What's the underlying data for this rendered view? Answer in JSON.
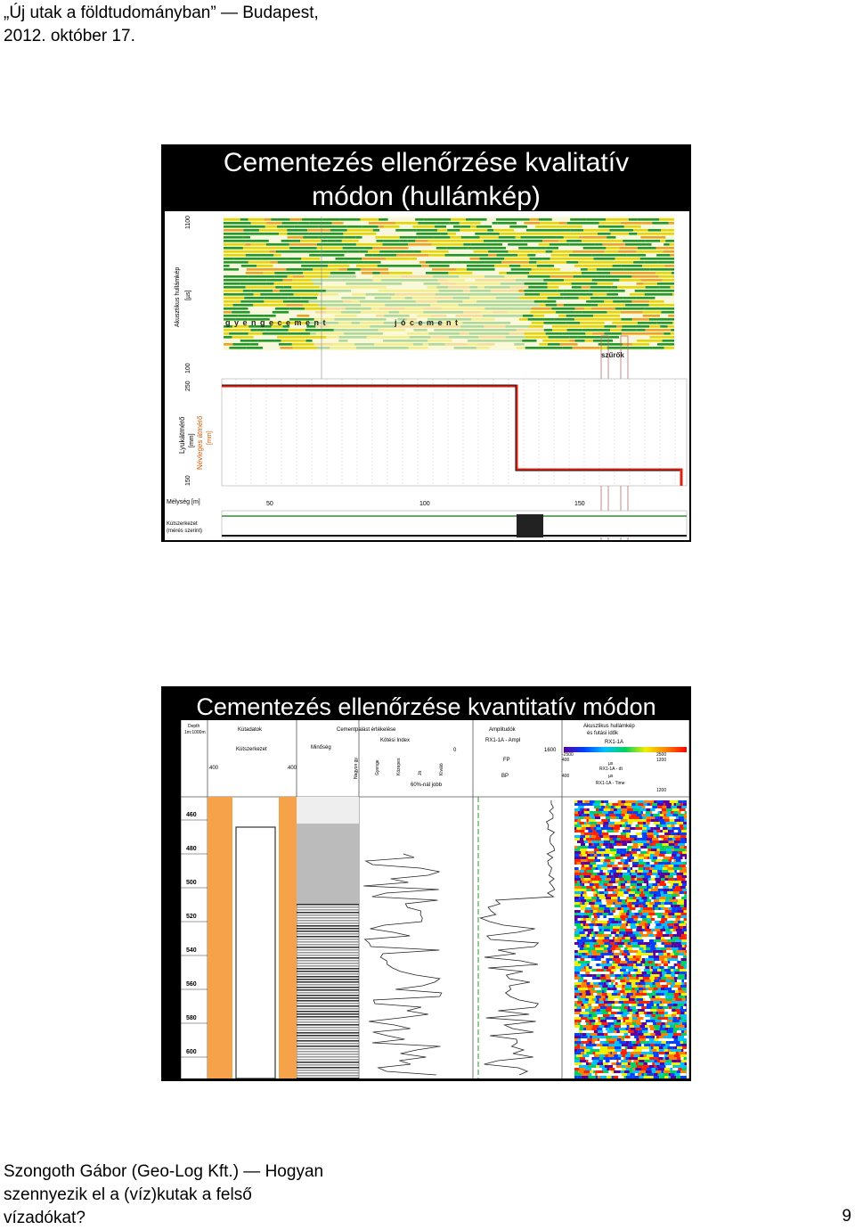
{
  "header": {
    "line1": "„Új utak a földtudományban” ― Budapest,",
    "line2": "2012. október 17."
  },
  "slide1": {
    "title_line1": "Cementezés ellenőrzése kvalitatív",
    "title_line2": "módon (hullámkép)",
    "labels": {
      "wave_axis": "Akusztikus hullámkép",
      "wave_unit": "[µs]",
      "wave_top": "1100",
      "wave_bottom": "100",
      "cement_weak": "g y e n g e   c e m e n t",
      "cement_good": "j ó   c e m e n t",
      "filters": "szűrők",
      "caliper": "Lyukátmérő",
      "caliper_unit": "[mm]",
      "nominal": "Névleges átmérő",
      "nominal_unit": "[mm]",
      "cal_top": "250",
      "cal_bottom": "150",
      "depth": "Mélység [m]",
      "d50": "50",
      "d100": "100",
      "d150": "150",
      "well_structure": "Kútszerkezet",
      "well_structure_sub": "(mérés szerint)"
    }
  },
  "slide2": {
    "title": "Cementezés ellenőrzése kvantitatív módon",
    "labels": {
      "depth_col": "Depth",
      "depth_scale": "1m:1000m",
      "kutadatok": "Kútadatok",
      "kutszerkezet": "Kútszerkezet",
      "k400a": "400",
      "k400b": "400",
      "cement_eval": "Cementpalást értékelése",
      "minoseg": "Minőség",
      "kotes_index": "Kötési Index",
      "nagyon_gyenge": "Nagyon gy.",
      "gyenge": "Gyenge",
      "kozepes": "Közepes",
      "jo": "Jó",
      "kivalo": "Kiváló",
      "over60": "60%-nál jobb",
      "amplitudok": "Amplitudók",
      "rx_ampl": "RX1-1A - Ampl",
      "a0": "0",
      "a1600": "1600",
      "fp": "FP",
      "bp": "BP",
      "akusztikus": "Akusztikus hullámkép",
      "futasi": "és futási idők",
      "rx1": "RX1-1A",
      "m2500": "-2500",
      "p2500": "2500",
      "v400a": "400",
      "us_a": "µs",
      "v1200a": "1200",
      "rx_dt": "RX1-1A - dt",
      "v400b": "400",
      "us_b": "µs",
      "v1200b": "1200",
      "rx_time": "RX1-1A - Time"
    },
    "depths": [
      "460",
      "480",
      "500",
      "520",
      "540",
      "560",
      "580",
      "600"
    ]
  },
  "footer": {
    "line1": "Szongoth Gábor (Geo-Log Kft.) ― Hogyan",
    "line2": "szennyezik el a (víz)kutak a felső",
    "line3": "vízadókat?"
  },
  "page_number": "9",
  "colors": {
    "slide_bg": "#000000",
    "wave_green": "#1f9a2a",
    "wave_yellow": "#e8d400",
    "wave_orange": "#f0a020",
    "caliper_red": "#e02010",
    "cement_orange": "#f6a24a"
  }
}
